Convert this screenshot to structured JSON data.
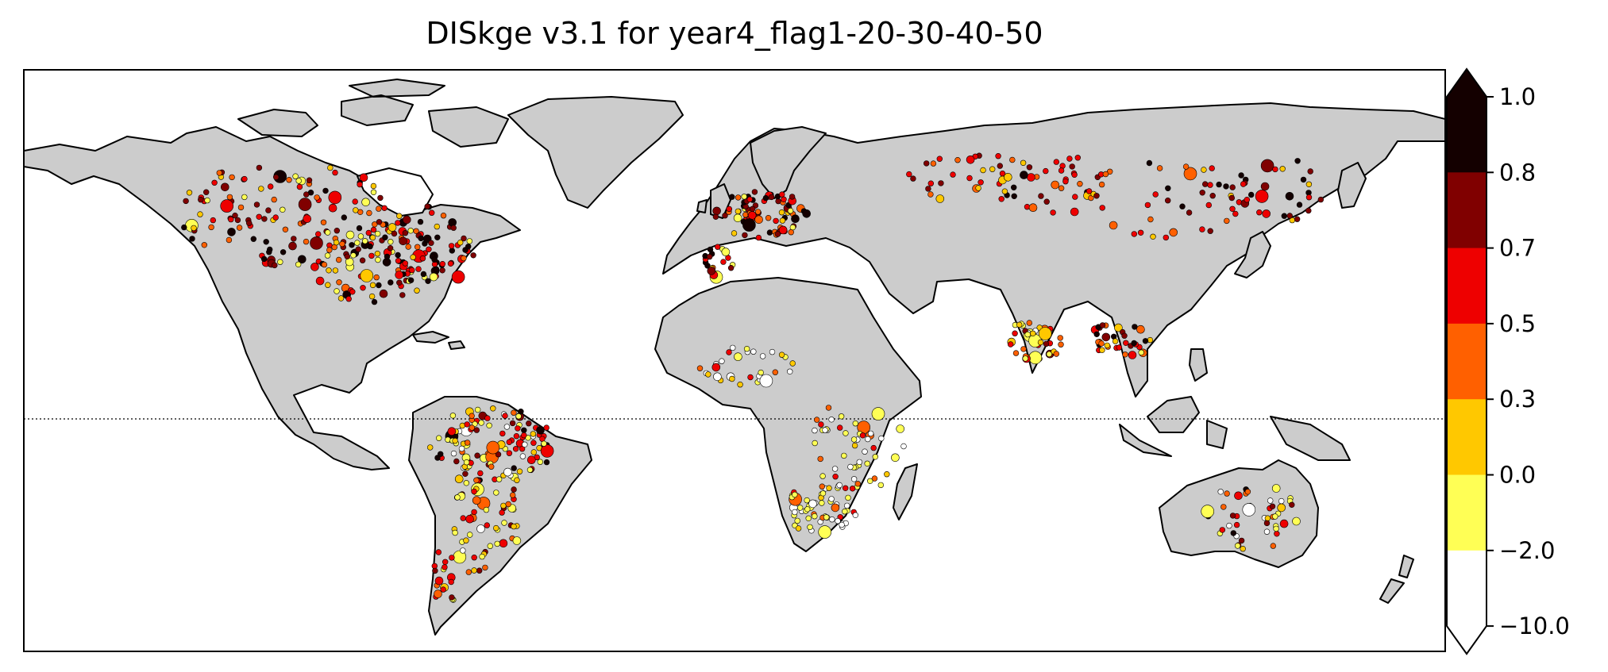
{
  "title": "DISkge v3.1 for year4_flag1-20-30-40-50",
  "map": {
    "land_color": "#cccccc",
    "coast_color": "#000000",
    "ocean_color": "#ffffff",
    "equator_style": "dotted"
  },
  "colorbar": {
    "extend": "both",
    "bins": [
      {
        "from": -10.0,
        "to": -2.0,
        "color": "#ffffff"
      },
      {
        "from": -2.0,
        "to": 0.0,
        "color": "#ffff55"
      },
      {
        "from": 0.0,
        "to": 0.3,
        "color": "#ffc800"
      },
      {
        "from": 0.3,
        "to": 0.5,
        "color": "#ff6000"
      },
      {
        "from": 0.5,
        "to": 0.7,
        "color": "#ee0000"
      },
      {
        "from": 0.7,
        "to": 0.8,
        "color": "#800000"
      },
      {
        "from": 0.8,
        "to": 1.0,
        "color": "#140000"
      }
    ],
    "ticks": [
      "1.0",
      "0.8",
      "0.7",
      "0.5",
      "0.3",
      "0.0",
      "−2.0",
      "−10.0"
    ]
  }
}
